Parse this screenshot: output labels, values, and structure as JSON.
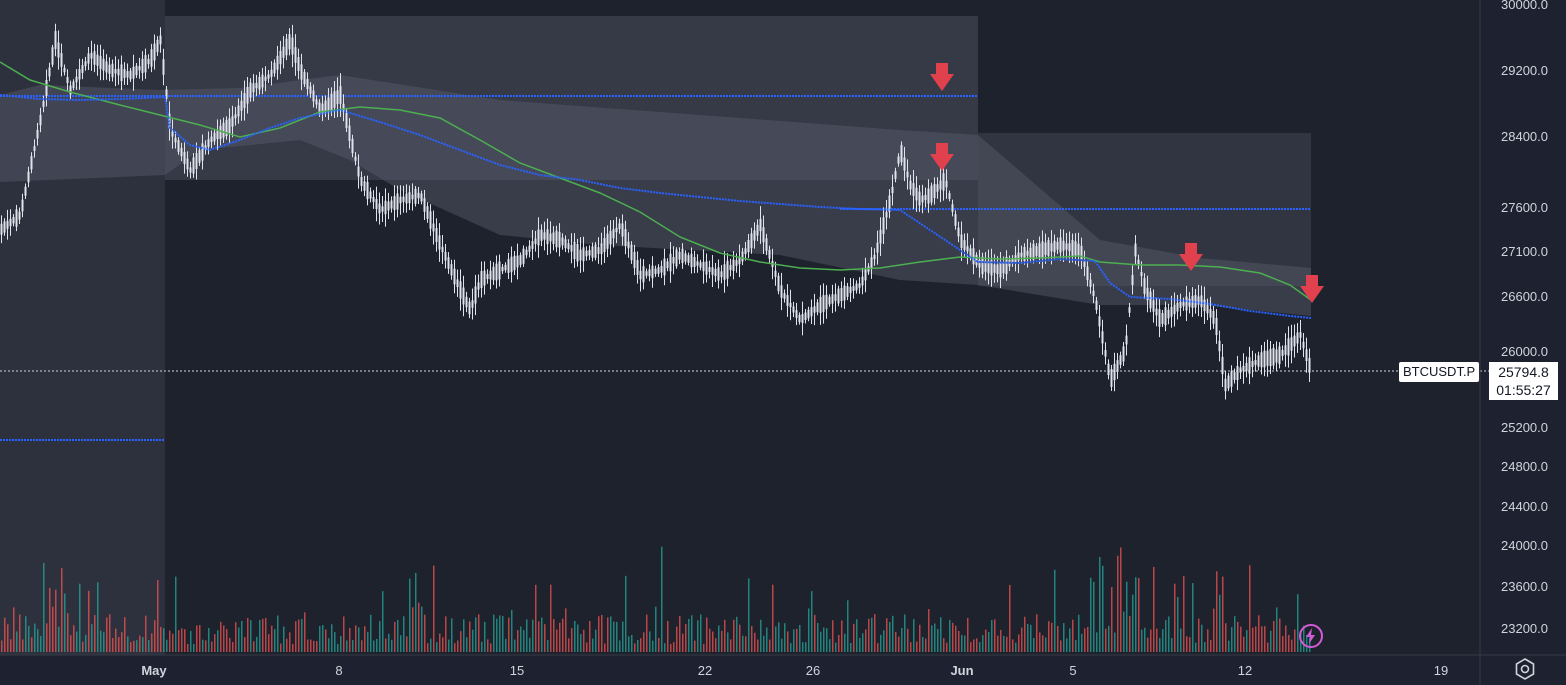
{
  "chart_data": {
    "type": "candlestick",
    "symbol": "BTCUSDT.P",
    "last_price": "25794.8",
    "countdown": "01:55:27",
    "y_ticks": [
      "30000.0",
      "29200.0",
      "28400.0",
      "27600.0",
      "27100.0",
      "26600.0",
      "26000.0",
      "25200.0",
      "24800.0",
      "24400.0",
      "24000.0",
      "23600.0",
      "23200.0"
    ],
    "x_ticks": [
      {
        "label": "May",
        "bold": true
      },
      {
        "label": "8",
        "bold": false
      },
      {
        "label": "15",
        "bold": false
      },
      {
        "label": "22",
        "bold": false
      },
      {
        "label": "26",
        "bold": false
      },
      {
        "label": "Jun",
        "bold": true
      },
      {
        "label": "5",
        "bold": false
      },
      {
        "label": "12",
        "bold": false
      },
      {
        "label": "19",
        "bold": false
      }
    ],
    "colors": {
      "background": "#1e2230",
      "candle": "#e0e3eb",
      "volume_up": "#26a69a",
      "volume_down": "#ef5350",
      "ma_green": "#4caf50",
      "vwap_blue": "#2962ff",
      "arrow": "#e0414d",
      "band": "#4a4e5c",
      "bolt": "#d65ad8"
    },
    "icons": {
      "down_arrows": 4,
      "settings": "settings-icon",
      "bolt": "lightning-icon"
    }
  }
}
